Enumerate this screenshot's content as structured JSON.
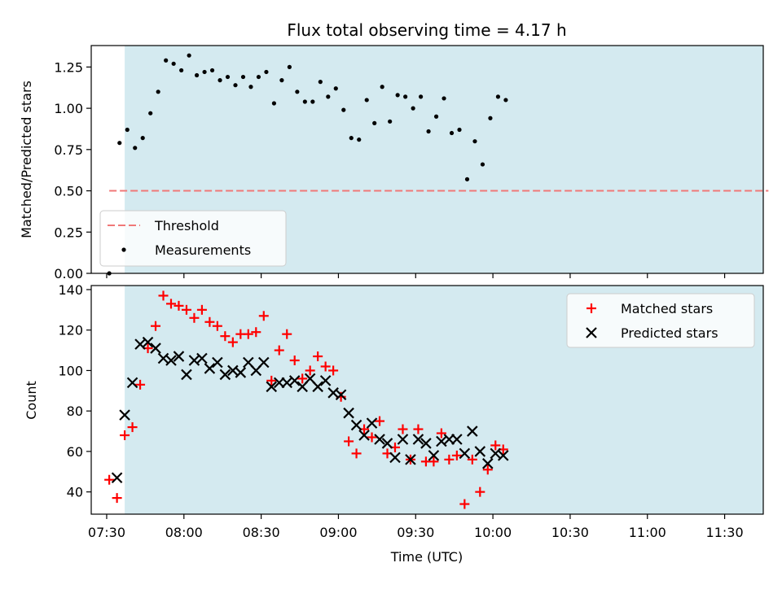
{
  "chart_data": {
    "title": "Flux total observing time = 4.17 h",
    "xlabel": "Time (UTC)",
    "x_ticks": [
      "07:30",
      "08:00",
      "08:30",
      "09:00",
      "09:30",
      "10:00",
      "10:30",
      "11:00",
      "11:30"
    ],
    "x_range": [
      "07:24",
      "11:45"
    ],
    "shaded_interval": [
      "07:37",
      "11:47"
    ],
    "colors": {
      "shade": "#d4eaf0",
      "threshold": "#f07878",
      "matched": "#ff0000",
      "predicted": "#000000"
    },
    "panels": [
      {
        "type": "scatter",
        "ylabel": "Matched/Predicted stars",
        "ylim": [
          0,
          1.38
        ],
        "y_ticks": [
          "0.00",
          "0.25",
          "0.50",
          "0.75",
          "1.00",
          "1.25"
        ],
        "legend_position": "lower-left",
        "threshold": {
          "name": "Threshold",
          "value": 0.5,
          "x_start": "07:31",
          "x_end": "11:47"
        },
        "series": [
          {
            "name": "Measurements",
            "points": [
              [
                "07:31",
                0.0
              ],
              [
                "07:35",
                0.79
              ],
              [
                "07:38",
                0.87
              ],
              [
                "07:41",
                0.76
              ],
              [
                "07:44",
                0.82
              ],
              [
                "07:47",
                0.97
              ],
              [
                "07:50",
                1.1
              ],
              [
                "07:53",
                1.29
              ],
              [
                "07:56",
                1.27
              ],
              [
                "07:59",
                1.23
              ],
              [
                "08:02",
                1.32
              ],
              [
                "08:05",
                1.2
              ],
              [
                "08:08",
                1.22
              ],
              [
                "08:11",
                1.23
              ],
              [
                "08:14",
                1.17
              ],
              [
                "08:17",
                1.19
              ],
              [
                "08:20",
                1.14
              ],
              [
                "08:23",
                1.19
              ],
              [
                "08:26",
                1.13
              ],
              [
                "08:29",
                1.19
              ],
              [
                "08:32",
                1.22
              ],
              [
                "08:35",
                1.03
              ],
              [
                "08:38",
                1.17
              ],
              [
                "08:41",
                1.25
              ],
              [
                "08:44",
                1.1
              ],
              [
                "08:47",
                1.04
              ],
              [
                "08:50",
                1.04
              ],
              [
                "08:53",
                1.16
              ],
              [
                "08:56",
                1.07
              ],
              [
                "08:59",
                1.12
              ],
              [
                "09:02",
                0.99
              ],
              [
                "09:05",
                0.82
              ],
              [
                "09:08",
                0.81
              ],
              [
                "09:11",
                1.05
              ],
              [
                "09:14",
                0.91
              ],
              [
                "09:17",
                1.13
              ],
              [
                "09:20",
                0.92
              ],
              [
                "09:23",
                1.08
              ],
              [
                "09:26",
                1.07
              ],
              [
                "09:29",
                1.0
              ],
              [
                "09:32",
                1.07
              ],
              [
                "09:35",
                0.86
              ],
              [
                "09:38",
                0.95
              ],
              [
                "09:41",
                1.06
              ],
              [
                "09:44",
                0.85
              ],
              [
                "09:47",
                0.87
              ],
              [
                "09:50",
                0.57
              ],
              [
                "09:53",
                0.8
              ],
              [
                "09:56",
                0.66
              ],
              [
                "09:59",
                0.94
              ],
              [
                "10:02",
                1.07
              ],
              [
                "10:05",
                1.05
              ]
            ]
          }
        ]
      },
      {
        "type": "scatter",
        "ylabel": "Count",
        "ylim": [
          29,
          142
        ],
        "y_ticks": [
          "40",
          "60",
          "80",
          "100",
          "120",
          "140"
        ],
        "legend_position": "upper-right",
        "series": [
          {
            "name": "Matched stars",
            "marker": "+",
            "points": [
              [
                "07:31",
                46
              ],
              [
                "07:34",
                37
              ],
              [
                "07:37",
                68
              ],
              [
                "07:40",
                72
              ],
              [
                "07:43",
                93
              ],
              [
                "07:46",
                111
              ],
              [
                "07:49",
                122
              ],
              [
                "07:52",
                137
              ],
              [
                "07:55",
                133
              ],
              [
                "07:58",
                132
              ],
              [
                "08:01",
                130
              ],
              [
                "08:04",
                126
              ],
              [
                "08:07",
                130
              ],
              [
                "08:10",
                124
              ],
              [
                "08:13",
                122
              ],
              [
                "08:16",
                117
              ],
              [
                "08:19",
                114
              ],
              [
                "08:22",
                118
              ],
              [
                "08:25",
                118
              ],
              [
                "08:28",
                119
              ],
              [
                "08:31",
                127
              ],
              [
                "08:34",
                95
              ],
              [
                "08:37",
                110
              ],
              [
                "08:40",
                118
              ],
              [
                "08:43",
                105
              ],
              [
                "08:46",
                96
              ],
              [
                "08:49",
                100
              ],
              [
                "08:52",
                107
              ],
              [
                "08:55",
                102
              ],
              [
                "08:58",
                100
              ],
              [
                "09:01",
                87
              ],
              [
                "09:04",
                65
              ],
              [
                "09:07",
                59
              ],
              [
                "09:10",
                71
              ],
              [
                "09:13",
                67
              ],
              [
                "09:16",
                75
              ],
              [
                "09:19",
                59
              ],
              [
                "09:22",
                62
              ],
              [
                "09:25",
                71
              ],
              [
                "09:28",
                56
              ],
              [
                "09:31",
                71
              ],
              [
                "09:34",
                55
              ],
              [
                "09:37",
                55
              ],
              [
                "09:40",
                69
              ],
              [
                "09:43",
                56
              ],
              [
                "09:46",
                58
              ],
              [
                "09:49",
                34
              ],
              [
                "09:52",
                56
              ],
              [
                "09:55",
                40
              ],
              [
                "09:58",
                51
              ],
              [
                "10:01",
                63
              ],
              [
                "10:04",
                61
              ]
            ]
          },
          {
            "name": "Predicted stars",
            "marker": "x",
            "points": [
              [
                "07:34",
                47
              ],
              [
                "07:37",
                78
              ],
              [
                "07:40",
                94
              ],
              [
                "07:43",
                113
              ],
              [
                "07:46",
                114
              ],
              [
                "07:49",
                111
              ],
              [
                "07:52",
                106
              ],
              [
                "07:55",
                105
              ],
              [
                "07:58",
                107
              ],
              [
                "08:01",
                98
              ],
              [
                "08:04",
                105
              ],
              [
                "08:07",
                106
              ],
              [
                "08:10",
                101
              ],
              [
                "08:13",
                104
              ],
              [
                "08:16",
                98
              ],
              [
                "08:19",
                100
              ],
              [
                "08:22",
                99
              ],
              [
                "08:25",
                104
              ],
              [
                "08:28",
                100
              ],
              [
                "08:31",
                104
              ],
              [
                "08:34",
                92
              ],
              [
                "08:37",
                94
              ],
              [
                "08:40",
                94
              ],
              [
                "08:43",
                95
              ],
              [
                "08:46",
                92
              ],
              [
                "08:49",
                96
              ],
              [
                "08:52",
                92
              ],
              [
                "08:55",
                95
              ],
              [
                "08:58",
                89
              ],
              [
                "09:01",
                88
              ],
              [
                "09:04",
                79
              ],
              [
                "09:07",
                73
              ],
              [
                "09:10",
                68
              ],
              [
                "09:13",
                74
              ],
              [
                "09:16",
                66
              ],
              [
                "09:19",
                64
              ],
              [
                "09:22",
                57
              ],
              [
                "09:25",
                66
              ],
              [
                "09:28",
                56
              ],
              [
                "09:31",
                66
              ],
              [
                "09:34",
                64
              ],
              [
                "09:37",
                58
              ],
              [
                "09:40",
                65
              ],
              [
                "09:43",
                66
              ],
              [
                "09:46",
                66
              ],
              [
                "09:49",
                59
              ],
              [
                "09:52",
                70
              ],
              [
                "09:55",
                60
              ],
              [
                "09:58",
                54
              ],
              [
                "10:01",
                59
              ],
              [
                "10:04",
                58
              ]
            ]
          }
        ]
      }
    ]
  }
}
